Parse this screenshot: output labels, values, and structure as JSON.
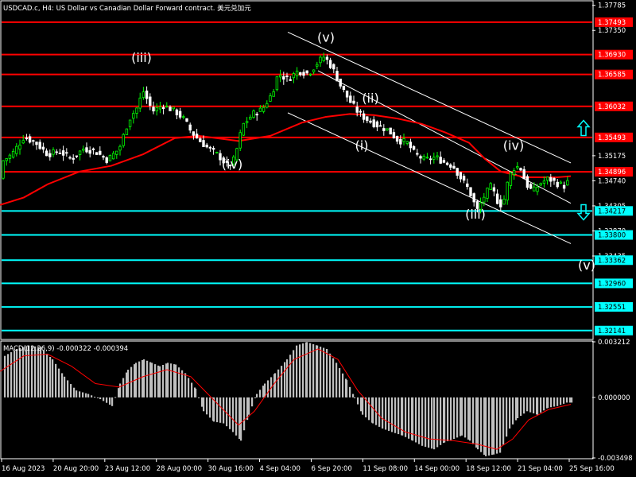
{
  "header": {
    "title": "USDCAD.c, H4:  US Dollar vs Canadian Dollar Forward contract. 美元兑加元"
  },
  "colors": {
    "background": "#000000",
    "bull": "#00ff00",
    "bear": "#ffffff",
    "resistance": "#ff0000",
    "support": "#00ffff",
    "ma": "#ff0000",
    "channel": "#ffffff",
    "macd_hist": "#c0c0c0",
    "macd_signal": "#ff0000"
  },
  "chart_data": [
    {
      "type": "candlestick",
      "symbol": "USDCAD.c",
      "timeframe": "H4",
      "ylim": [
        1.32,
        1.3785
      ],
      "y_ticks": [
        "1.37785",
        "1.37350",
        "1.35175",
        "1.34740",
        "1.34305",
        "1.33870",
        "1.33435"
      ],
      "x_ticks": [
        "16 Aug 2023",
        "20 Aug 20:00",
        "23 Aug 12:00",
        "28 Aug 00:00",
        "30 Aug 16:00",
        "4 Sep 04:00",
        "6 Sep 20:00",
        "11 Sep 08:00",
        "14 Sep 00:00",
        "18 Sep 12:00",
        "21 Sep 04:00",
        "25 Sep 16:00"
      ],
      "horizontal_levels": [
        {
          "price": 1.37493,
          "label": "1.37493",
          "kind": "resistance"
        },
        {
          "price": 1.3693,
          "label": "1.36930",
          "kind": "resistance"
        },
        {
          "price": 1.36585,
          "label": "1.36585",
          "kind": "resistance"
        },
        {
          "price": 1.36032,
          "label": "1.36032",
          "kind": "resistance"
        },
        {
          "price": 1.35493,
          "label": "1.35493",
          "kind": "resistance"
        },
        {
          "price": 1.34896,
          "label": "1.34896",
          "kind": "current"
        },
        {
          "price": 1.34217,
          "label": "1.34217",
          "kind": "support"
        },
        {
          "price": 1.338,
          "label": "1.33800",
          "kind": "support"
        },
        {
          "price": 1.33362,
          "label": "1.33362",
          "kind": "support"
        },
        {
          "price": 1.3296,
          "label": "1.32960",
          "kind": "support"
        },
        {
          "price": 1.32551,
          "label": "1.32551",
          "kind": "support"
        },
        {
          "price": 1.32141,
          "label": "1.32141",
          "kind": "support"
        }
      ],
      "price_path": [
        [
          0,
          1.3505
        ],
        [
          15,
          1.352
        ],
        [
          30,
          1.355
        ],
        [
          45,
          1.354
        ],
        [
          60,
          1.352
        ],
        [
          75,
          1.3525
        ],
        [
          90,
          1.3512
        ],
        [
          105,
          1.353
        ],
        [
          120,
          1.3525
        ],
        [
          135,
          1.351
        ],
        [
          150,
          1.353
        ],
        [
          162,
          1.358
        ],
        [
          172,
          1.36
        ],
        [
          180,
          1.363
        ],
        [
          192,
          1.3595
        ],
        [
          205,
          1.3605
        ],
        [
          220,
          1.3595
        ],
        [
          232,
          1.358
        ],
        [
          240,
          1.356
        ],
        [
          250,
          1.3545
        ],
        [
          262,
          1.353
        ],
        [
          275,
          1.3518
        ],
        [
          287,
          1.3498
        ],
        [
          295,
          1.3512
        ],
        [
          305,
          1.357
        ],
        [
          318,
          1.359
        ],
        [
          330,
          1.3598
        ],
        [
          342,
          1.3625
        ],
        [
          350,
          1.366
        ],
        [
          362,
          1.365
        ],
        [
          375,
          1.3665
        ],
        [
          388,
          1.366
        ],
        [
          400,
          1.368
        ],
        [
          408,
          1.369
        ],
        [
          418,
          1.367
        ],
        [
          428,
          1.364
        ],
        [
          440,
          1.3612
        ],
        [
          452,
          1.359
        ],
        [
          462,
          1.358
        ],
        [
          475,
          1.357
        ],
        [
          488,
          1.3562
        ],
        [
          500,
          1.3545
        ],
        [
          512,
          1.354
        ],
        [
          522,
          1.352
        ],
        [
          535,
          1.351
        ],
        [
          548,
          1.3515
        ],
        [
          560,
          1.3505
        ],
        [
          570,
          1.35
        ],
        [
          580,
          1.3478
        ],
        [
          590,
          1.3458
        ],
        [
          600,
          1.3422
        ],
        [
          610,
          1.345
        ],
        [
          618,
          1.3465
        ],
        [
          625,
          1.344
        ],
        [
          632,
          1.343
        ],
        [
          640,
          1.348
        ],
        [
          648,
          1.35
        ],
        [
          655,
          1.3495
        ],
        [
          662,
          1.3468
        ],
        [
          670,
          1.3455
        ],
        [
          680,
          1.347
        ],
        [
          690,
          1.3478
        ],
        [
          700,
          1.347
        ],
        [
          710,
          1.3465
        ],
        [
          718,
          1.3478
        ]
      ],
      "moving_average": [
        [
          0,
          1.3432
        ],
        [
          30,
          1.3445
        ],
        [
          60,
          1.3468
        ],
        [
          100,
          1.349
        ],
        [
          140,
          1.35
        ],
        [
          180,
          1.352
        ],
        [
          220,
          1.3548
        ],
        [
          250,
          1.3552
        ],
        [
          300,
          1.3543
        ],
        [
          340,
          1.3552
        ],
        [
          380,
          1.3575
        ],
        [
          410,
          1.3585
        ],
        [
          440,
          1.359
        ],
        [
          470,
          1.3588
        ],
        [
          500,
          1.3582
        ],
        [
          530,
          1.3573
        ],
        [
          560,
          1.3558
        ],
        [
          590,
          1.354
        ],
        [
          610,
          1.3512
        ],
        [
          630,
          1.349
        ],
        [
          660,
          1.348
        ],
        [
          700,
          1.348
        ],
        [
          718,
          1.3482
        ]
      ],
      "channel": {
        "upper": [
          [
            362,
            1.3732
          ],
          [
            718,
            1.3505
          ]
        ],
        "lower": [
          [
            362,
            1.3592
          ],
          [
            718,
            1.3365
          ]
        ],
        "middle": [
          [
            400,
            1.3665
          ],
          [
            718,
            1.3435
          ]
        ]
      },
      "wave_labels": [
        {
          "text": "(iii)",
          "x": 178,
          "price": 1.368
        },
        {
          "text": "(iv)",
          "x": 292,
          "price": 1.3495
        },
        {
          "text": "(v)",
          "x": 410,
          "price": 1.3715
        },
        {
          "text": "(ii)",
          "x": 466,
          "price": 1.361
        },
        {
          "text": "(i)",
          "x": 455,
          "price": 1.3528
        },
        {
          "text": "(iv)",
          "x": 646,
          "price": 1.3528
        },
        {
          "text": "(iii)",
          "x": 598,
          "price": 1.3408
        },
        {
          "text": "(v)",
          "x": 738,
          "price": 1.332
        }
      ],
      "arrows": [
        {
          "direction": "up",
          "x": 734,
          "price": 1.3565
        },
        {
          "direction": "down",
          "x": 734,
          "price": 1.342
        }
      ]
    },
    {
      "type": "macd",
      "label": "MACD(12,26,9) -0.000322 -0.000394",
      "params": "12,26,9",
      "main_value": -0.000322,
      "signal_value": -0.000394,
      "ylim": [
        -0.003498,
        0.003212
      ],
      "y_ticks": [
        "0.003212",
        "0.000000",
        "-0.003498"
      ],
      "histogram": [
        [
          5,
          0.0024
        ],
        [
          20,
          0.0028
        ],
        [
          35,
          0.003
        ],
        [
          50,
          0.0029
        ],
        [
          65,
          0.0022
        ],
        [
          80,
          0.0012
        ],
        [
          95,
          0.0004
        ],
        [
          110,
          0.0002
        ],
        [
          125,
          -0.0001
        ],
        [
          140,
          -0.0005
        ],
        [
          150,
          0.0008
        ],
        [
          160,
          0.0016
        ],
        [
          170,
          0.002
        ],
        [
          180,
          0.0022
        ],
        [
          190,
          0.002
        ],
        [
          200,
          0.0018
        ],
        [
          210,
          0.002
        ],
        [
          220,
          0.0019
        ],
        [
          232,
          0.0014
        ],
        [
          245,
          0.0005
        ],
        [
          255,
          -0.0008
        ],
        [
          268,
          -0.0014
        ],
        [
          280,
          -0.0015
        ],
        [
          292,
          -0.002
        ],
        [
          302,
          -0.0025
        ],
        [
          312,
          -0.001
        ],
        [
          322,
          0.0002
        ],
        [
          332,
          0.0008
        ],
        [
          345,
          0.0014
        ],
        [
          360,
          0.0022
        ],
        [
          372,
          0.003
        ],
        [
          385,
          0.0032
        ],
        [
          398,
          0.003
        ],
        [
          410,
          0.0028
        ],
        [
          422,
          0.002
        ],
        [
          435,
          0.001
        ],
        [
          445,
          0.0
        ],
        [
          455,
          -0.001
        ],
        [
          468,
          -0.0015
        ],
        [
          480,
          -0.0018
        ],
        [
          492,
          -0.002
        ],
        [
          505,
          -0.0022
        ],
        [
          518,
          -0.0025
        ],
        [
          530,
          -0.0028
        ],
        [
          545,
          -0.003
        ],
        [
          558,
          -0.0026
        ],
        [
          570,
          -0.0024
        ],
        [
          580,
          -0.0022
        ],
        [
          590,
          -0.0025
        ],
        [
          600,
          -0.003
        ],
        [
          610,
          -0.0034
        ],
        [
          620,
          -0.0033
        ],
        [
          628,
          -0.0032
        ],
        [
          640,
          -0.0018
        ],
        [
          650,
          -0.0012
        ],
        [
          662,
          -0.0008
        ],
        [
          675,
          -0.001
        ],
        [
          688,
          -0.0006
        ],
        [
          700,
          -0.0005
        ],
        [
          712,
          -0.0003
        ],
        [
          718,
          -0.0003
        ]
      ],
      "signal": [
        [
          0,
          0.0015
        ],
        [
          30,
          0.0024
        ],
        [
          60,
          0.0025
        ],
        [
          90,
          0.0018
        ],
        [
          120,
          0.0008
        ],
        [
          150,
          0.0006
        ],
        [
          180,
          0.0012
        ],
        [
          210,
          0.0016
        ],
        [
          240,
          0.0012
        ],
        [
          270,
          -0.0002
        ],
        [
          300,
          -0.0016
        ],
        [
          320,
          -0.0008
        ],
        [
          345,
          0.0008
        ],
        [
          370,
          0.0022
        ],
        [
          400,
          0.0028
        ],
        [
          425,
          0.0022
        ],
        [
          450,
          0.0004
        ],
        [
          480,
          -0.0012
        ],
        [
          510,
          -0.002
        ],
        [
          540,
          -0.0024
        ],
        [
          570,
          -0.0025
        ],
        [
          600,
          -0.0027
        ],
        [
          625,
          -0.003
        ],
        [
          645,
          -0.0024
        ],
        [
          665,
          -0.0013
        ],
        [
          690,
          -0.0007
        ],
        [
          718,
          -0.0004
        ]
      ]
    }
  ]
}
